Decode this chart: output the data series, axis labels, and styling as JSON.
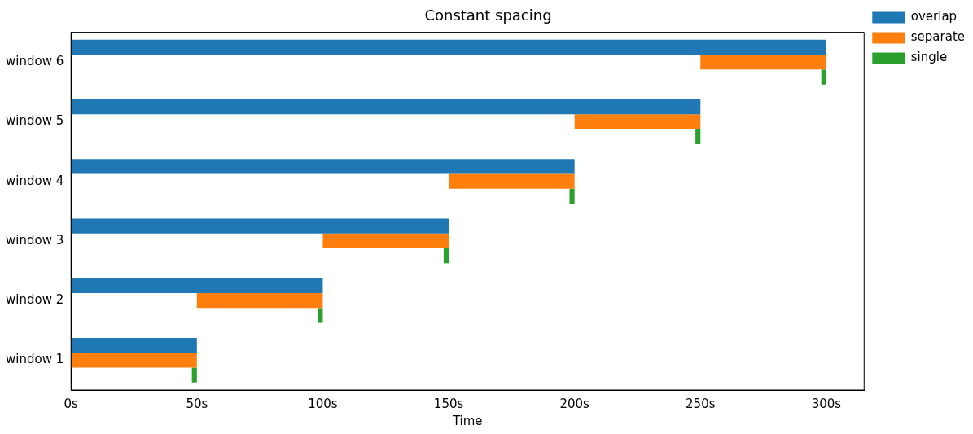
{
  "chart_data": {
    "type": "bar",
    "orientation": "horizontal",
    "title": "Constant spacing",
    "xlabel": "Time",
    "categories": [
      "window 6",
      "window 5",
      "window 4",
      "window 3",
      "window 2",
      "window 1"
    ],
    "series": [
      {
        "name": "overlap",
        "color": "#1f77b4",
        "base": [
          0,
          0,
          0,
          0,
          0,
          0
        ],
        "values": [
          300,
          250,
          200,
          150,
          100,
          50
        ]
      },
      {
        "name": "separate",
        "color": "#ff7f0e",
        "base": [
          250,
          200,
          150,
          100,
          50,
          0
        ],
        "values": [
          50,
          50,
          50,
          50,
          50,
          50
        ]
      },
      {
        "name": "single",
        "color": "#2ca02c",
        "base": [
          298,
          248,
          198,
          148,
          98,
          48
        ],
        "values": [
          2,
          2,
          2,
          2,
          2,
          2
        ]
      }
    ],
    "xlim": [
      0,
      315
    ],
    "xticks": [
      {
        "value": 0,
        "label": "0s"
      },
      {
        "value": 50,
        "label": "50s"
      },
      {
        "value": 100,
        "label": "100s"
      },
      {
        "value": 150,
        "label": "150s"
      },
      {
        "value": 200,
        "label": "200s"
      },
      {
        "value": 250,
        "label": "250s"
      },
      {
        "value": 300,
        "label": "300s"
      }
    ],
    "grid": false,
    "legend": "top right"
  }
}
